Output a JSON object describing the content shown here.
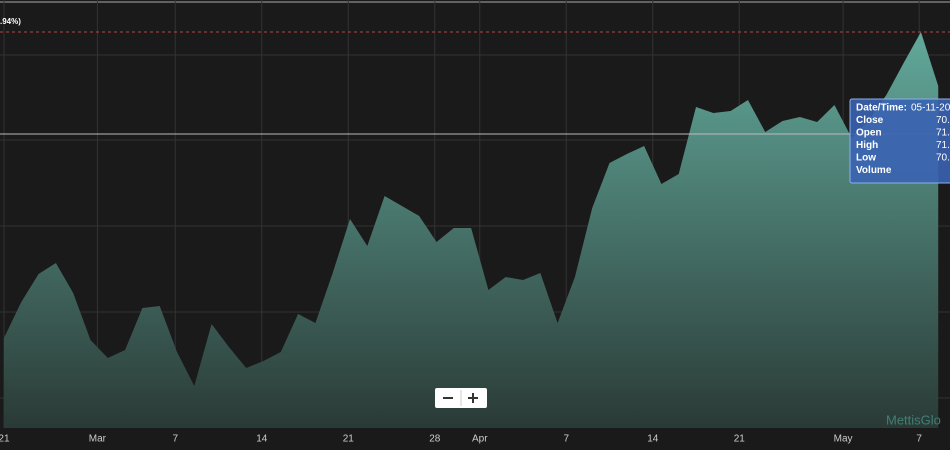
{
  "chart_data": {
    "type": "area",
    "change_label": ".94%)",
    "watermark": "MettisGlo",
    "x": [
      0,
      1,
      2,
      3,
      4,
      5,
      6,
      7,
      8,
      9,
      10,
      11,
      12,
      13,
      14,
      15,
      16,
      17,
      18,
      19,
      20,
      21,
      22,
      23,
      24,
      25,
      26,
      27,
      28,
      29,
      30,
      31,
      32,
      33,
      34,
      35,
      36,
      37,
      38,
      39,
      40,
      41,
      42,
      43,
      44,
      45,
      46,
      47,
      48,
      49,
      50,
      51,
      52,
      53,
      54
    ],
    "series": [
      {
        "color": "#5fa89a",
        "values": [
          22.5,
          31.5,
          38.5,
          41.25,
          33.75,
          22,
          17.5,
          19.5,
          30,
          30.5,
          19,
          10.5,
          26,
          20.25,
          15,
          16.75,
          19,
          28.5,
          26.25,
          38.75,
          52.25,
          45.5,
          58,
          55.5,
          53,
          46.5,
          50,
          50,
          34.5,
          37.75,
          37,
          38.75,
          26.25,
          37.75,
          55,
          66.25,
          68.5,
          70.5,
          61,
          63.5,
          80.25,
          78.75,
          79.25,
          82,
          74,
          76.75,
          77.75,
          76.5,
          80.75,
          72.5,
          77,
          83.25,
          91.25,
          99,
          85.5
        ]
      }
    ],
    "xlim": [
      -0.23,
      54.68
    ],
    "ylim": [
      0,
      107
    ],
    "xticks": [
      {
        "value": 0,
        "label": "21"
      },
      {
        "value": 5.4,
        "label": "Mar"
      },
      {
        "value": 9.9,
        "label": "7"
      },
      {
        "value": 14.9,
        "label": "14"
      },
      {
        "value": 19.9,
        "label": "21"
      },
      {
        "value": 24.9,
        "label": "28"
      },
      {
        "value": 27.5,
        "label": "Apr"
      },
      {
        "value": 32.5,
        "label": "7"
      },
      {
        "value": 37.5,
        "label": "14"
      },
      {
        "value": 42.5,
        "label": "21"
      },
      {
        "value": 48.5,
        "label": "May"
      },
      {
        "value": 52.9,
        "label": "7"
      }
    ],
    "ygrid": [
      93.25,
      72,
      50.5,
      29,
      7.5
    ],
    "reference_lines": [
      {
        "value": 99,
        "color": "#b04848",
        "dashed": true
      },
      {
        "value": 73.5,
        "color": "#bbbbbb",
        "dashed": false
      }
    ],
    "tooltip": {
      "rows": [
        [
          "Date/Time:",
          "05-11-20"
        ],
        [
          "Close",
          "70."
        ],
        [
          "Open",
          "71."
        ],
        [
          "High",
          "71."
        ],
        [
          "Low",
          "70."
        ],
        [
          "Volume",
          ""
        ]
      ]
    }
  }
}
